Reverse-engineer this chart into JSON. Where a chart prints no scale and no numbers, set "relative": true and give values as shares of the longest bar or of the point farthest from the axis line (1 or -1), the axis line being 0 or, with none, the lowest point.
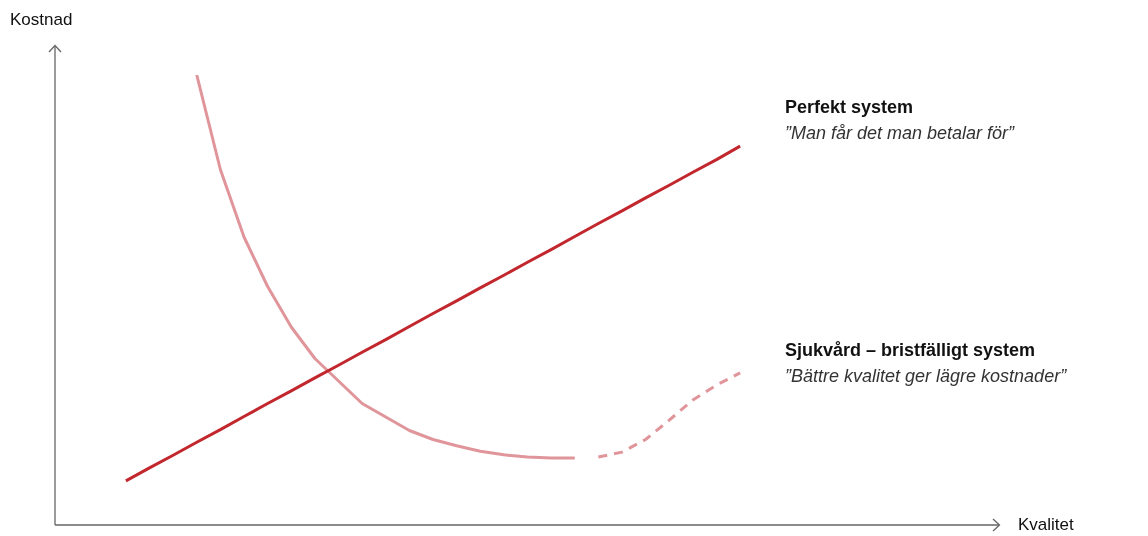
{
  "chart_data": {
    "type": "line",
    "relative": true,
    "xlabel": "Kvalitet",
    "ylabel": "Kostnad",
    "legend": false,
    "marker": "none",
    "categories": [
      null,
      null,
      null,
      null,
      null,
      null,
      null,
      null,
      null,
      null,
      null,
      null,
      null,
      null,
      null,
      null,
      null,
      null,
      null,
      null,
      null,
      null,
      null,
      null,
      null,
      null,
      null,
      null,
      null,
      null,
      null,
      null,
      null,
      null,
      null,
      null,
      null,
      null,
      null,
      null,
      null
    ],
    "series": [
      {
        "name": "Perfekt system",
        "color": "#c1272d",
        "line_style": "solid",
        "values": [
          null,
          null,
          null,
          0.098,
          0.127,
          0.155,
          0.184,
          0.212,
          0.241,
          0.27,
          0.298,
          0.327,
          0.355,
          0.384,
          0.412,
          0.441,
          0.47,
          0.498,
          0.527,
          0.555,
          0.584,
          0.612,
          0.641,
          0.67,
          0.698,
          0.727,
          0.755,
          0.784,
          0.812,
          0.842,
          null,
          null,
          null,
          null,
          null,
          null,
          null,
          null,
          null,
          null,
          null
        ]
      },
      {
        "name": "Sjukvård – bristfälligt system",
        "color": "#e0959b",
        "line_style": "solid",
        "values": [
          null,
          null,
          null,
          null,
          null,
          null,
          1.0,
          0.79,
          0.64,
          0.53,
          0.44,
          0.37,
          0.32,
          0.27,
          0.24,
          0.21,
          0.19,
          0.176,
          0.164,
          0.156,
          0.151,
          0.149,
          0.149,
          null,
          null,
          null,
          null,
          null,
          null,
          null,
          null,
          null,
          null,
          null,
          null,
          null,
          null,
          null,
          null,
          null,
          null
        ]
      },
      {
        "color": "#e0959b",
        "line_style": "dashed",
        "values": [
          null,
          null,
          null,
          null,
          null,
          null,
          null,
          null,
          null,
          null,
          null,
          null,
          null,
          null,
          null,
          null,
          null,
          null,
          null,
          null,
          null,
          null,
          null,
          0.151,
          0.162,
          0.19,
          0.233,
          0.278,
          0.311,
          0.338,
          null,
          null,
          null,
          null,
          null,
          null,
          null,
          null,
          null,
          null,
          null
        ]
      }
    ],
    "annotations": [
      "”Man får det man betalar för”",
      "”Bättre kvalitet ger lägre kostnader”"
    ]
  }
}
